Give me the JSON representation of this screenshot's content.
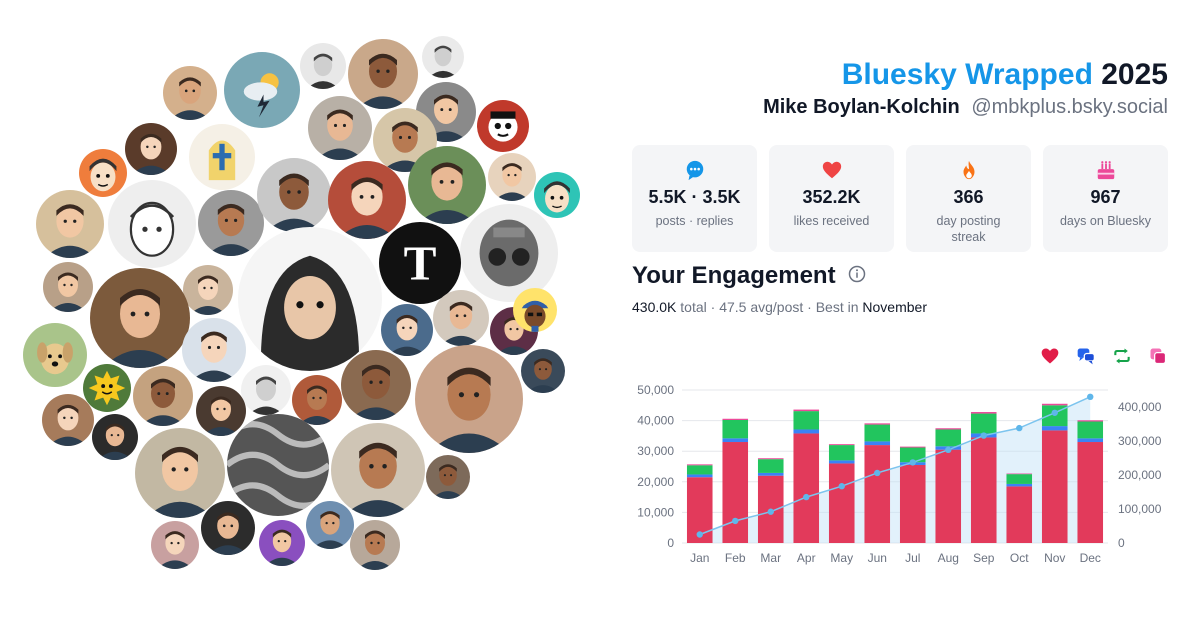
{
  "header": {
    "brand": "Bluesky Wrapped",
    "year": "2025",
    "name": "Mike Boylan-Kolchin",
    "handle": "@mbkplus.bsky.social"
  },
  "stats": [
    {
      "icon": "speech-bubble-icon",
      "value": "5.5K · 3.5K",
      "label": "posts · replies",
      "color": "#1596e8"
    },
    {
      "icon": "heart-icon",
      "value": "352.2K",
      "label": "likes received",
      "color": "#ef4444"
    },
    {
      "icon": "flame-icon",
      "value": "366",
      "label": "day posting streak",
      "color": "#f97316"
    },
    {
      "icon": "cake-icon",
      "value": "967",
      "label": "days on Bluesky",
      "color": "#ec4899"
    }
  ],
  "engagement": {
    "title": "Your Engagement",
    "total": "430.0K",
    "total_word": "total",
    "avg": "47.5 avg/post",
    "best_prefix": "Best in",
    "best_month": "November"
  },
  "legend": [
    {
      "icon": "heart-icon",
      "color": "#e11d48"
    },
    {
      "icon": "reply-icon",
      "color": "#2563eb"
    },
    {
      "icon": "repost-icon",
      "color": "#16a34a"
    },
    {
      "icon": "quote-icon",
      "color": "#db2777"
    }
  ],
  "chart_data": {
    "type": "bar",
    "categories": [
      "Jan",
      "Feb",
      "Mar",
      "Apr",
      "May",
      "Jun",
      "Jul",
      "Aug",
      "Sep",
      "Oct",
      "Nov",
      "Dec"
    ],
    "series": [
      {
        "values": [
          21500,
          33000,
          22000,
          35800,
          26000,
          32000,
          25500,
          30500,
          34500,
          18500,
          36800,
          33000
        ],
        "color": "#e23a5b"
      },
      {
        "values": [
          900,
          1200,
          900,
          1300,
          1000,
          1200,
          900,
          1100,
          1300,
          800,
          1400,
          1200
        ],
        "color": "#3b82f6"
      },
      {
        "values": [
          3000,
          6000,
          4500,
          6000,
          5000,
          5500,
          4800,
          5500,
          6500,
          3200,
          6800,
          5500
        ],
        "color": "#22c55e"
      },
      {
        "values": [
          300,
          400,
          300,
          500,
          300,
          400,
          300,
          400,
          500,
          200,
          500,
          400
        ],
        "color": "#ec4899"
      }
    ],
    "cumulative": [
      25000,
      65000,
      92000,
      135000,
      167000,
      206000,
      237000,
      274000,
      316000,
      338000,
      383000,
      430000
    ],
    "y_ticks": [
      "0",
      "10,000",
      "20,000",
      "30,000",
      "40,000",
      "50,000"
    ],
    "y2_ticks": [
      "0",
      "100,000",
      "200,000",
      "300,000",
      "400,000"
    ],
    "ylim": [
      0,
      50000
    ],
    "y2lim": [
      0,
      450000
    ]
  },
  "avatars": [
    {
      "c": "#7aa8b5",
      "k": "weather"
    },
    {
      "c": "#d4b08c",
      "k": "face"
    },
    {
      "c": "#e8e8e8",
      "k": "face-bw"
    },
    {
      "c": "#c9a88a",
      "k": "face"
    },
    {
      "c": "#eaeaea",
      "k": "face-bw"
    },
    {
      "c": "#b8b0a6",
      "k": "face"
    },
    {
      "c": "#8a8a8a",
      "k": "face"
    },
    {
      "c": "#c0392b",
      "k": "mascot"
    },
    {
      "c": "#d6c6a8",
      "k": "face"
    },
    {
      "c": "#f5f0e6",
      "k": "mitre"
    },
    {
      "c": "#5a3b2a",
      "k": "face"
    },
    {
      "c": "#ef7d3c",
      "k": "cartoon"
    },
    {
      "c": "#d6c09c",
      "k": "face"
    },
    {
      "c": "#eeeeee",
      "k": "sketch"
    },
    {
      "c": "#9a9a9a",
      "k": "face"
    },
    {
      "c": "#c8c8c8",
      "k": "face"
    },
    {
      "c": "#b54d3a",
      "k": "face"
    },
    {
      "c": "#6b8f59",
      "k": "face"
    },
    {
      "c": "#e7d3bd",
      "k": "face"
    },
    {
      "c": "#2ec4b6",
      "k": "cartoon"
    },
    {
      "c": "#9b9b9b",
      "k": "helmet"
    },
    {
      "c": "#111111",
      "k": "nyt"
    },
    {
      "c": "#c9b49c",
      "k": "face"
    },
    {
      "c": "#7c5a3c",
      "k": "face"
    },
    {
      "c": "#b8a088",
      "k": "face"
    },
    {
      "c": "#a9c48a",
      "k": "dog"
    },
    {
      "c": "#4f7a3a",
      "k": "mascot2"
    },
    {
      "c": "#c4a27f",
      "k": "face"
    },
    {
      "c": "#d9e1ea",
      "k": "face"
    },
    {
      "c": "#f0f0f0",
      "k": "face-bw"
    },
    {
      "c": "#4a3a30",
      "k": "face"
    },
    {
      "c": "#f5f5f5",
      "k": "hair"
    },
    {
      "c": "#b05a3a",
      "k": "face"
    },
    {
      "c": "#8a6a50",
      "k": "face"
    },
    {
      "c": "#4b6b8c",
      "k": "face"
    },
    {
      "c": "#d3c9bd",
      "k": "face"
    },
    {
      "c": "#5d2e46",
      "k": "face"
    },
    {
      "c": "#ffe36b",
      "k": "cartoon2"
    },
    {
      "c": "#c9a38a",
      "k": "face"
    },
    {
      "c": "#3a4a5a",
      "k": "face"
    },
    {
      "c": "#a67b5b",
      "k": "face"
    },
    {
      "c": "#2b2b2b",
      "k": "face"
    },
    {
      "c": "#c2b8a3",
      "k": "face"
    },
    {
      "c": "#888888",
      "k": "pattern"
    },
    {
      "c": "#cfc5b5",
      "k": "face"
    },
    {
      "c": "#7d6a5a",
      "k": "face"
    },
    {
      "c": "#c8a0a0",
      "k": "face"
    },
    {
      "c": "#2c2c2c",
      "k": "face"
    },
    {
      "c": "#8a4fbf",
      "k": "face"
    },
    {
      "c": "#6f8fb0",
      "k": "face"
    },
    {
      "c": "#b7a89a",
      "k": "face"
    },
    {
      "c": "#d8d8d8",
      "k": "face-bw"
    },
    {
      "c": "#d95f2a",
      "k": "lego"
    },
    {
      "c": "#a7c4e0",
      "k": "face"
    },
    {
      "c": "#111111",
      "k": "wp"
    },
    {
      "c": "#f0f0f0",
      "k": "sketch"
    },
    {
      "c": "#9aa5b1",
      "k": "face"
    },
    {
      "c": "#c6906a",
      "k": "face"
    }
  ]
}
